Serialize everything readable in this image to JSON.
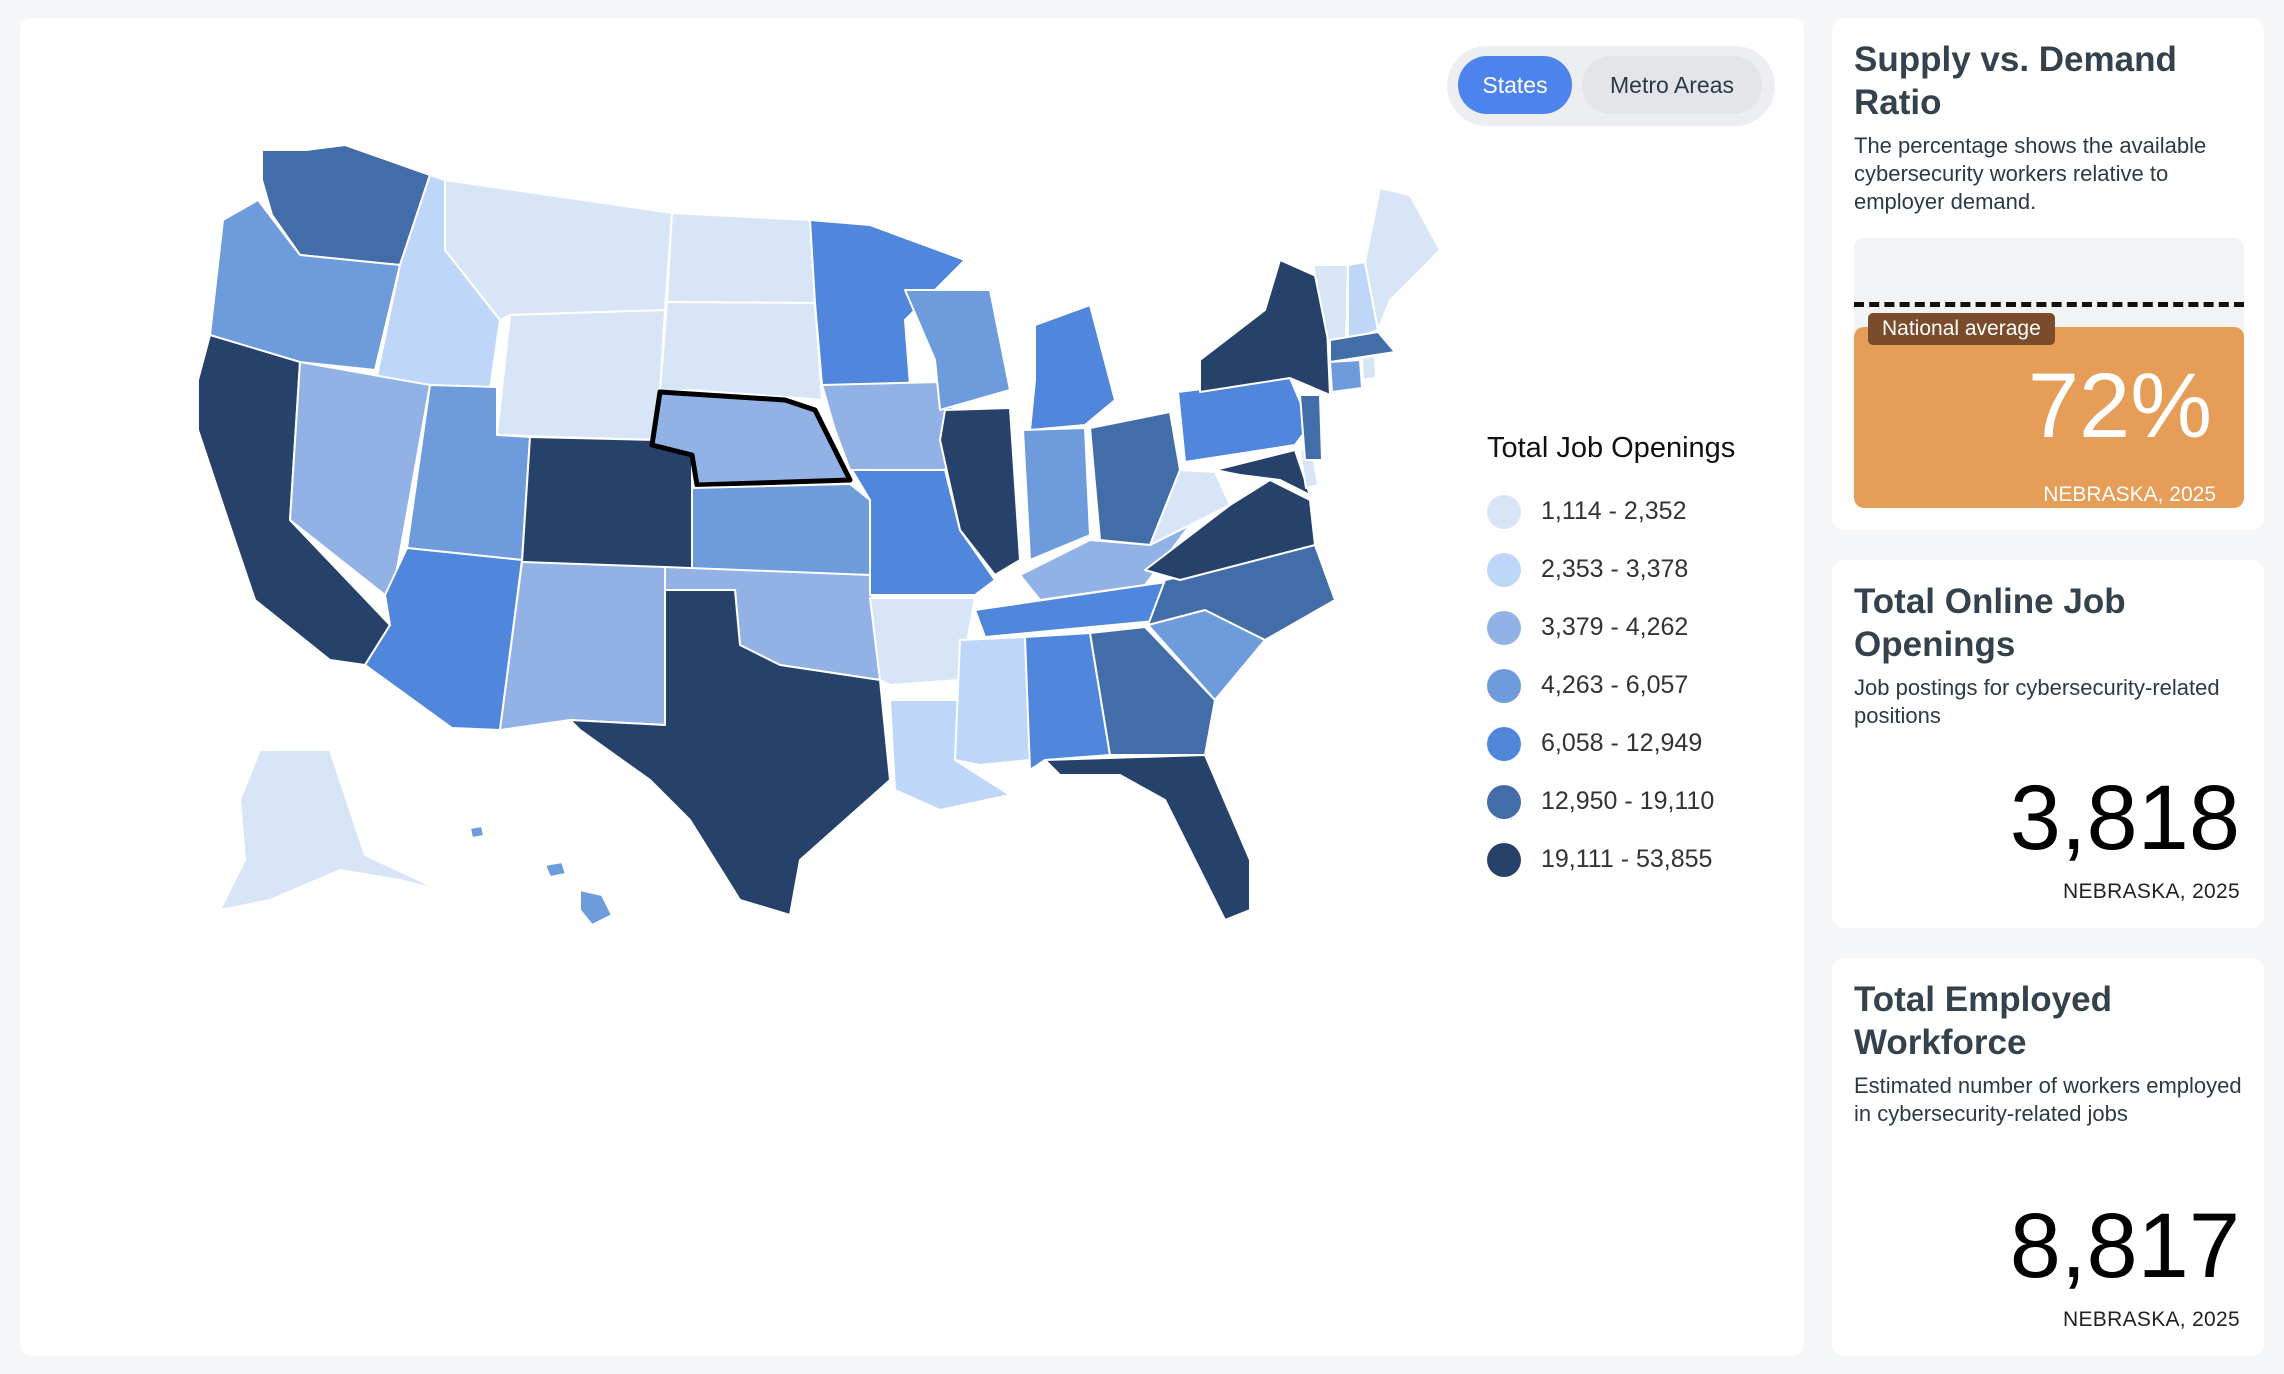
{
  "toggle": {
    "states": "States",
    "metro": "Metro Areas",
    "selected": "States"
  },
  "legend": {
    "title": "Total Job Openings",
    "bins": [
      {
        "label": "1,114 - 2,352",
        "color": "#d8e5f6"
      },
      {
        "label": "2,353 - 3,378",
        "color": "#bed7f8"
      },
      {
        "label": "3,379 - 4,262",
        "color": "#92b2e5"
      },
      {
        "label": "4,263 - 6,057",
        "color": "#6d9bdc"
      },
      {
        "label": "6,058 - 12,949",
        "color": "#5086db"
      },
      {
        "label": "12,950 - 19,110",
        "color": "#426da9"
      },
      {
        "label": "19,111 - 53,855",
        "color": "#26426b"
      }
    ]
  },
  "selected_state": "Nebraska",
  "supply_demand": {
    "title": "Supply vs. Demand Ratio",
    "description": "The percentage shows the available cybersecurity workers relative to employer demand.",
    "national_average_label": "National average",
    "value": "72%",
    "value_fraction": 0.72,
    "subtitle": "NEBRASKA, 2025"
  },
  "job_openings": {
    "title": "Total Online Job Openings",
    "description": "Job postings for cybersecurity-related positions",
    "value": "3,818",
    "subtitle": "NEBRASKA, 2025"
  },
  "workforce": {
    "title": "Total Employed Workforce",
    "description": "Estimated number of workers employed in cybersecurity-related jobs",
    "value": "8,817",
    "subtitle": "NEBRASKA, 2025"
  }
}
